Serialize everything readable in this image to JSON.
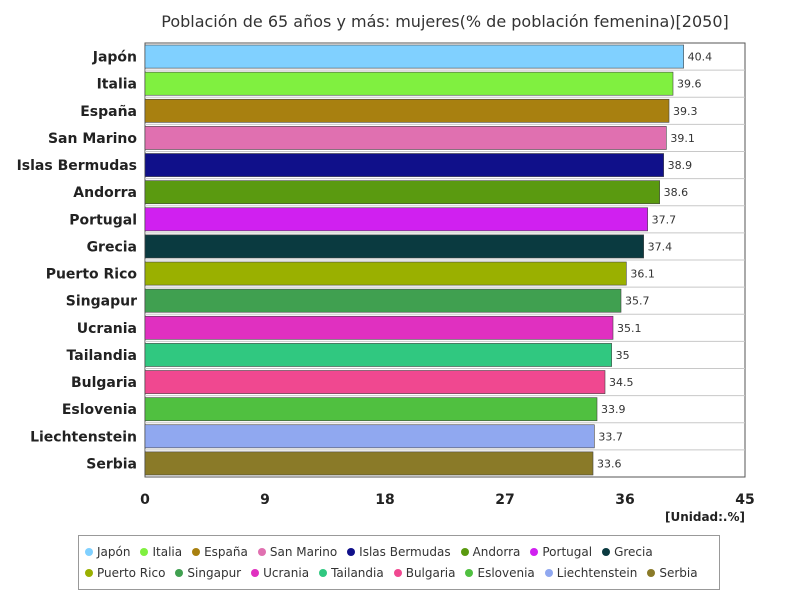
{
  "chart_data": {
    "type": "bar",
    "orientation": "horizontal",
    "title": "Población de 65 años y más: mujeres(% de población femenina)[2050]",
    "unit_label": "[Unidad:.%]",
    "categories": [
      "Japón",
      "Italia",
      "España",
      "San Marino",
      "Islas Bermudas",
      "Andorra",
      "Portugal",
      "Grecia",
      "Puerto Rico",
      "Singapur",
      "Ucrania",
      "Tailandia",
      "Bulgaria",
      "Eslovenia",
      "Liechtenstein",
      "Serbia"
    ],
    "values": [
      40.4,
      39.6,
      39.3,
      39.1,
      38.9,
      38.6,
      37.7,
      37.4,
      36.1,
      35.7,
      35.1,
      35,
      34.5,
      33.9,
      33.7,
      33.6
    ],
    "value_labels": [
      "40.4",
      "39.6",
      "39.3",
      "39.1",
      "38.9",
      "38.6",
      "37.7",
      "37.4",
      "36.1",
      "35.7",
      "35.1",
      "35",
      "34.5",
      "33.9",
      "33.7",
      "33.6"
    ],
    "colors": [
      "#80d0ff",
      "#80f040",
      "#a88010",
      "#e070b0",
      "#10108a",
      "#5a9a10",
      "#d020f0",
      "#0a3a40",
      "#9ab000",
      "#40a050",
      "#e030c0",
      "#30c880",
      "#f04890",
      "#50c040",
      "#90a8f0",
      "#8a7a28"
    ],
    "xlim": [
      0,
      45
    ],
    "xticks": [
      "0",
      "9",
      "18",
      "27",
      "36",
      "45"
    ],
    "xtick_values": [
      0,
      9,
      18,
      27,
      36,
      45
    ],
    "grid": true,
    "legend_position": "bottom"
  }
}
